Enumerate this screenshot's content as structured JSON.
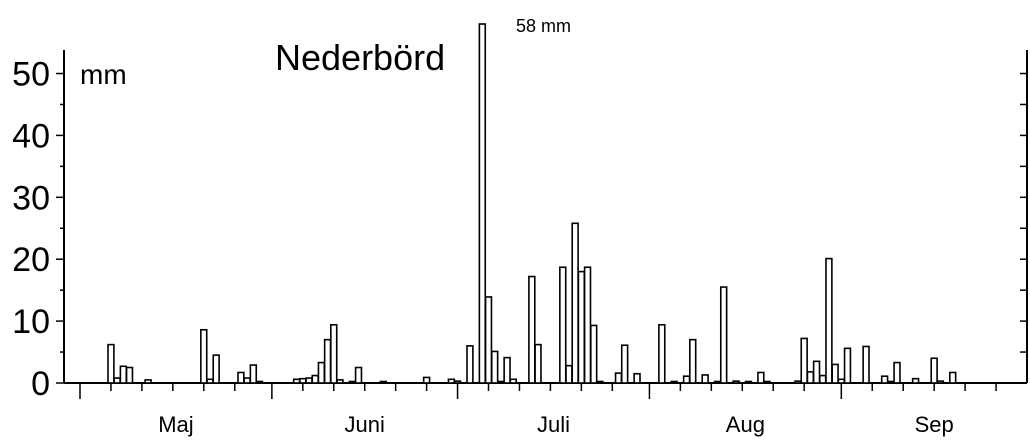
{
  "chart_data": {
    "type": "bar",
    "title": "Nederbörd",
    "ylabel": "mm",
    "xlabel": "",
    "ylim": [
      0,
      58
    ],
    "yticks": [
      0,
      10,
      20,
      30,
      40,
      50
    ],
    "xlim": [
      0,
      153
    ],
    "months": [
      {
        "label": "Maj",
        "start": 0,
        "end": 31
      },
      {
        "label": "Juni",
        "start": 31,
        "end": 61
      },
      {
        "label": "Juli",
        "start": 61,
        "end": 92
      },
      {
        "label": "Aug",
        "start": 92,
        "end": 123
      },
      {
        "label": "Sep",
        "start": 123,
        "end": 153
      }
    ],
    "annotation": {
      "text": "58 mm",
      "day": 69
    },
    "days": [
      5,
      6,
      7,
      8,
      11,
      20,
      21,
      22,
      26,
      27,
      28,
      29,
      35,
      36,
      37,
      38,
      39,
      40,
      41,
      42,
      44,
      45,
      49,
      56,
      60,
      61,
      63,
      65,
      66,
      67,
      68,
      69,
      70,
      73,
      74,
      78,
      79,
      80,
      81,
      82,
      83,
      84,
      87,
      88,
      90,
      94,
      96,
      98,
      99,
      101,
      103,
      104,
      106,
      108,
      110,
      111,
      116,
      117,
      118,
      119,
      120,
      121,
      122,
      123,
      124,
      127,
      130,
      131,
      132,
      135,
      138,
      139,
      141
    ],
    "values": [
      6.2,
      0.8,
      2.7,
      2.5,
      0.5,
      8.6,
      0.6,
      4.5,
      1.7,
      0.8,
      2.9,
      0.2,
      0.6,
      0.7,
      0.8,
      1.2,
      3.3,
      7.0,
      9.4,
      0.5,
      0.2,
      2.5,
      0.2,
      0.9,
      0.6,
      0.3,
      6.0,
      58.0,
      13.9,
      5.1,
      0.2,
      4.1,
      0.6,
      17.2,
      6.2,
      18.7,
      2.8,
      25.8,
      18.0,
      18.7,
      9.3,
      0.2,
      1.6,
      6.1,
      1.5,
      9.4,
      0.2,
      1.1,
      7.0,
      1.3,
      0.2,
      15.5,
      0.3,
      0.2,
      1.7,
      0.2,
      0.3,
      7.2,
      1.8,
      3.5,
      1.2,
      20.1,
      3.0,
      0.6,
      5.6,
      5.9,
      1.1,
      0.2,
      3.3,
      0.7,
      4.0,
      0.3,
      1.7
    ]
  }
}
